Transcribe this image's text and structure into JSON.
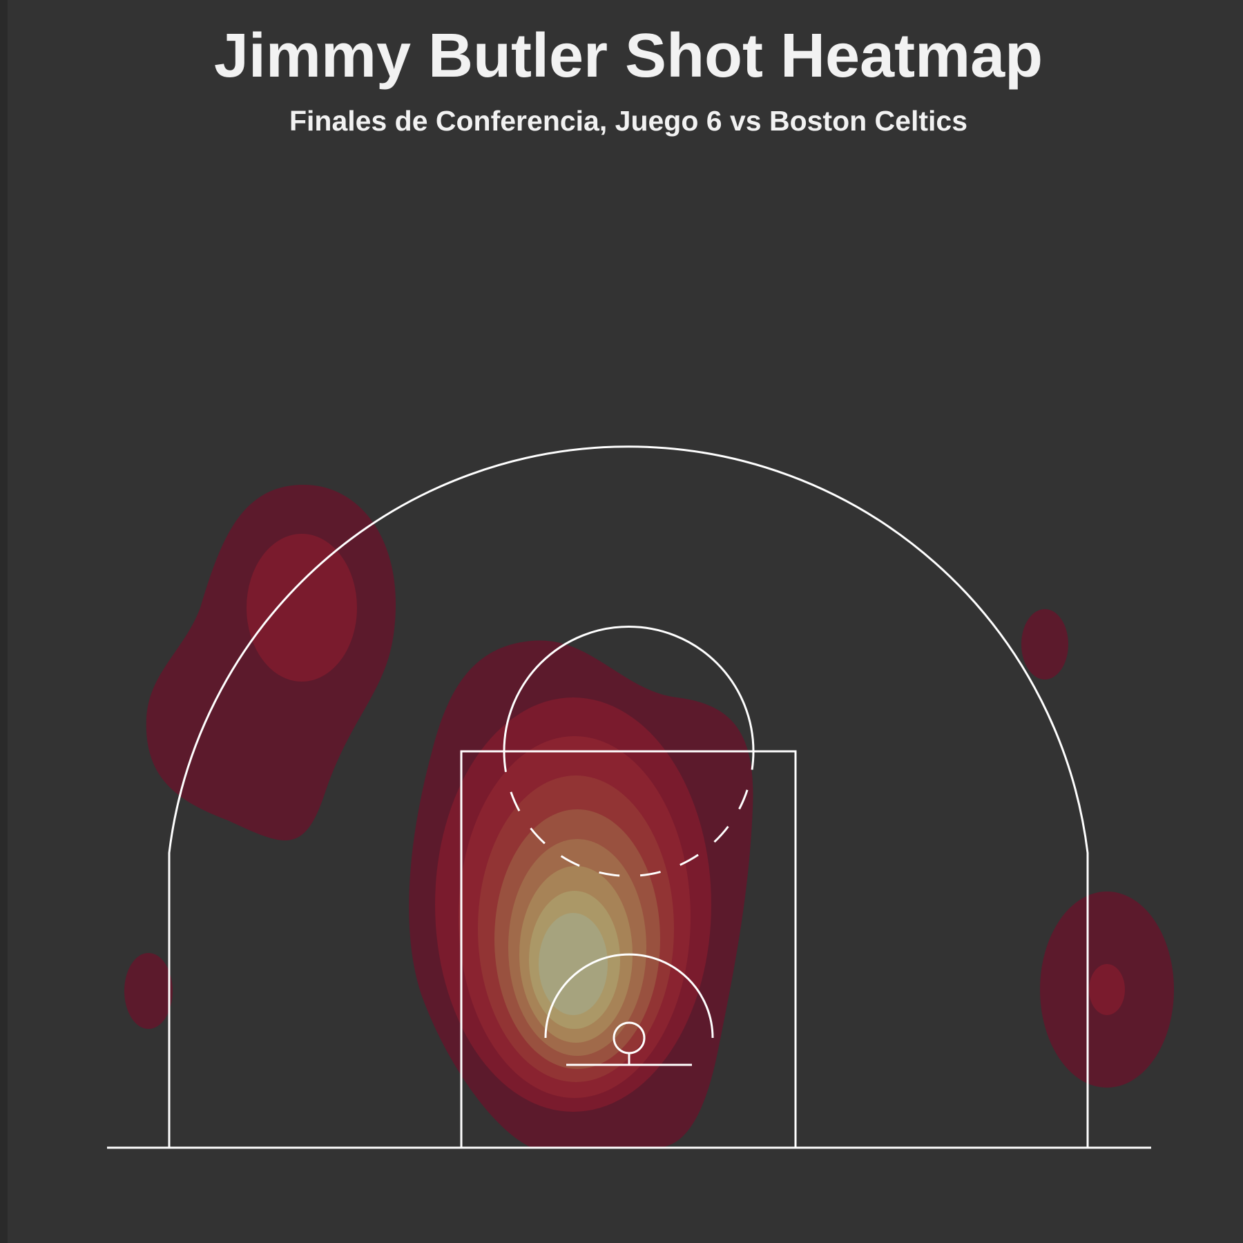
{
  "chart_data": {
    "type": "heatmap",
    "title": "Jimmy Butler Shot Heatmap",
    "subtitle": "Finales de Conferencia, Juego 6 vs Boston Celtics",
    "xlabel": "",
    "ylabel": "",
    "grid": false,
    "legend": "none",
    "colors": {
      "background": "#333333",
      "court_lines": "#ffffff",
      "levels": [
        "#5c1a2c",
        "#7a1b2d",
        "#8a2330",
        "#923434",
        "#99513f",
        "#a06a4a",
        "#a78357",
        "#ab9867",
        "#a6a37e",
        "#9aa48f"
      ]
    },
    "shot_clusters": [
      {
        "zone": "near-basket",
        "density": 1.0
      },
      {
        "zone": "left-wing-three",
        "density": 0.25
      },
      {
        "zone": "right-corner",
        "density": 0.2
      },
      {
        "zone": "left-corner",
        "density": 0.1
      },
      {
        "zone": "right-wing-three",
        "density": 0.1
      }
    ]
  }
}
